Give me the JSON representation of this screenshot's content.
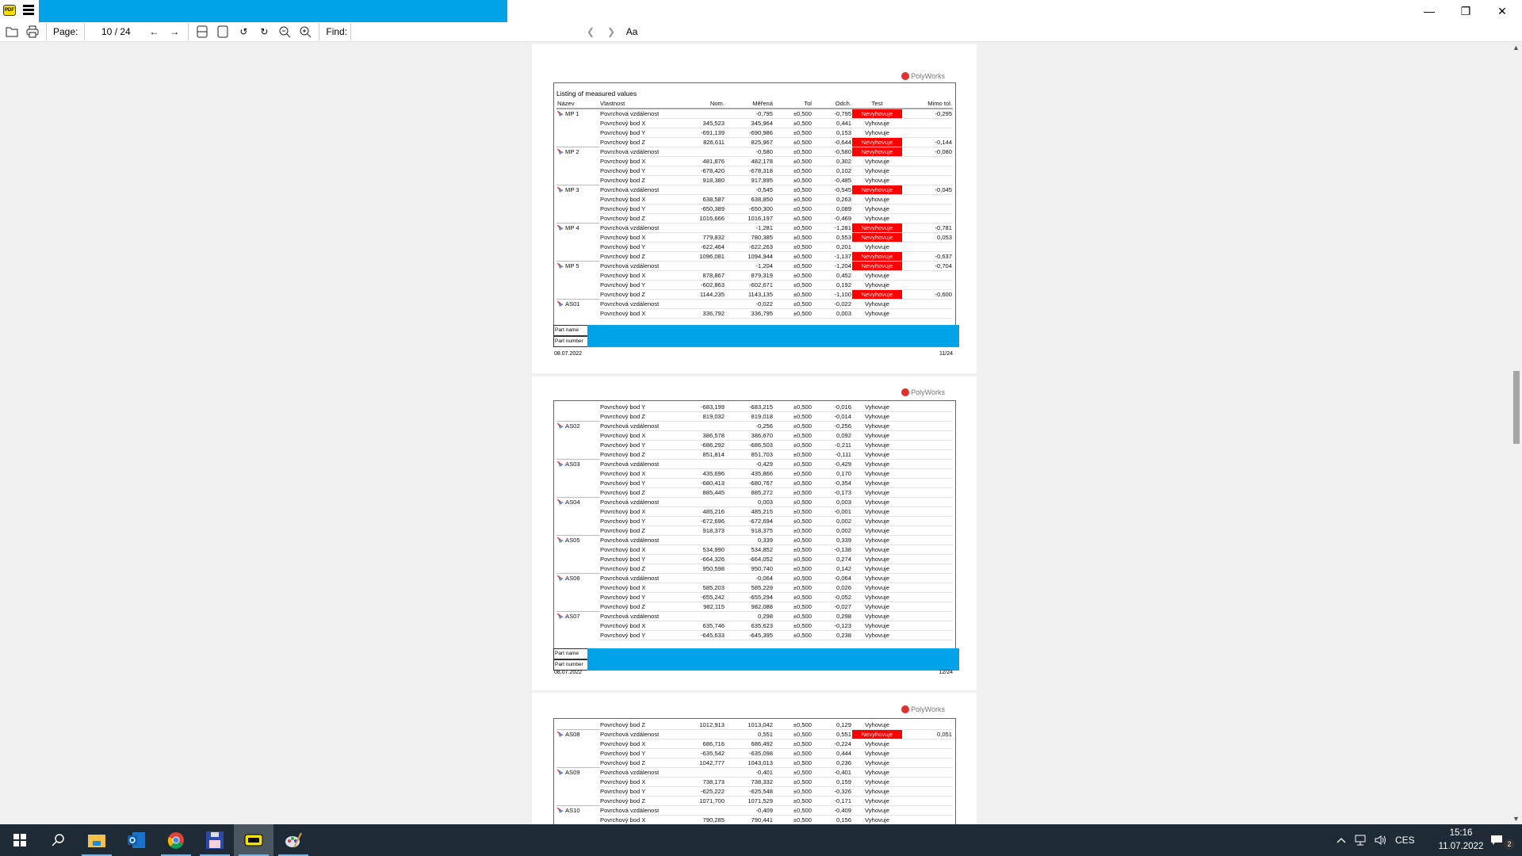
{
  "app": {
    "icon": "pdf-app-icon",
    "menu_icon": "hamburger-menu-icon",
    "title_redacted": true,
    "redaction_color": "#00a2e8"
  },
  "window_controls": {
    "minimize": "minimize-icon",
    "restore": "restore-icon",
    "close": "close-icon"
  },
  "toolbar": {
    "page_label": "Page:",
    "page_current": "10",
    "page_total": "/ 24",
    "find_label": "Find:",
    "find_value": "",
    "font_button": "Aa"
  },
  "colors": {
    "fail": "#ff0000",
    "accent": "#00a2e8",
    "taskbar": "#1e2a35"
  },
  "table_headers": [
    "Název",
    "Vlastnost",
    "Nom.",
    "Měřená",
    "Tol",
    "Odch.",
    "Test",
    "Mimo tol."
  ],
  "logo_text": "PolyWorks",
  "footer": {
    "part_name": "Part name",
    "part_number": "Part number"
  },
  "pages": [
    {
      "title": "Listing of measured values",
      "date": "08.07.2022",
      "page_no": "11/24",
      "groups": [
        {
          "name": "MP 1",
          "rows": [
            [
              "Povrchová vzdálenost",
              "",
              "-0,795",
              "±0,500",
              "-0,795",
              "Nevyhovuje",
              "-0,295"
            ],
            [
              "Povrchový bod X",
              "345,523",
              "345,964",
              "±0,500",
              "0,441",
              "Vyhovuje",
              ""
            ],
            [
              "Povrchový bod Y",
              "-691,139",
              "-690,986",
              "±0,500",
              "0,153",
              "Vyhovuje",
              ""
            ],
            [
              "Povrchový bod Z",
              "826,611",
              "825,967",
              "±0,500",
              "-0,644",
              "Nevyhovuje",
              "-0,144"
            ]
          ]
        },
        {
          "name": "MP 2",
          "rows": [
            [
              "Povrchová vzdálenost",
              "",
              "-0,580",
              "±0,500",
              "-0,580",
              "Nevyhovuje",
              "-0,080"
            ],
            [
              "Povrchový bod X",
              "481,876",
              "482,178",
              "±0,500",
              "0,302",
              "Vyhovuje",
              ""
            ],
            [
              "Povrchový bod Y",
              "-678,420",
              "-678,318",
              "±0,500",
              "0,102",
              "Vyhovuje",
              ""
            ],
            [
              "Povrchový bod Z",
              "918,380",
              "917,895",
              "±0,500",
              "-0,485",
              "Vyhovuje",
              ""
            ]
          ]
        },
        {
          "name": "MP 3",
          "rows": [
            [
              "Povrchová vzdálenost",
              "",
              "-0,545",
              "±0,500",
              "-0,545",
              "Nevyhovuje",
              "-0,045"
            ],
            [
              "Povrchový bod X",
              "638,587",
              "638,850",
              "±0,500",
              "0,263",
              "Vyhovuje",
              ""
            ],
            [
              "Povrchový bod Y",
              "-650,389",
              "-650,300",
              "±0,500",
              "0,089",
              "Vyhovuje",
              ""
            ],
            [
              "Povrchový bod Z",
              "1016,666",
              "1016,197",
              "±0,500",
              "-0,469",
              "Vyhovuje",
              ""
            ]
          ]
        },
        {
          "name": "MP 4",
          "rows": [
            [
              "Povrchová vzdálenost",
              "",
              "-1,281",
              "±0,500",
              "-1,281",
              "Nevyhovuje",
              "-0,781"
            ],
            [
              "Povrchový bod X",
              "779,832",
              "780,385",
              "±0,500",
              "0,553",
              "Nevyhovuje",
              "0,053"
            ],
            [
              "Povrchový bod Y",
              "-622,464",
              "-622,263",
              "±0,500",
              "0,201",
              "Vyhovuje",
              ""
            ],
            [
              "Povrchový bod Z",
              "1096,081",
              "1094,944",
              "±0,500",
              "-1,137",
              "Nevyhovuje",
              "-0,637"
            ]
          ]
        },
        {
          "name": "MP 5",
          "rows": [
            [
              "Povrchová vzdálenost",
              "",
              "-1,204",
              "±0,500",
              "-1,204",
              "Nevyhovuje",
              "-0,704"
            ],
            [
              "Povrchový bod X",
              "878,867",
              "879,319",
              "±0,500",
              "0,452",
              "Vyhovuje",
              ""
            ],
            [
              "Povrchový bod Y",
              "-602,863",
              "-602,671",
              "±0,500",
              "0,192",
              "Vyhovuje",
              ""
            ],
            [
              "Povrchový bod Z",
              "1144,235",
              "1143,135",
              "±0,500",
              "-1,100",
              "Nevyhovuje",
              "-0,600"
            ]
          ]
        },
        {
          "name": "AS01",
          "rows": [
            [
              "Povrchová vzdálenost",
              "",
              "-0,022",
              "±0,500",
              "-0,022",
              "Vyhovuje",
              ""
            ],
            [
              "Povrchový bod X",
              "336,792",
              "336,795",
              "±0,500",
              "0,003",
              "Vyhovuje",
              ""
            ]
          ]
        }
      ]
    },
    {
      "title": "",
      "date": "08.07.2022",
      "page_no": "12/24",
      "groups": [
        {
          "name": "",
          "rows": [
            [
              "Povrchový bod Y",
              "-683,199",
              "-683,215",
              "±0,500",
              "-0,016",
              "Vyhovuje",
              ""
            ],
            [
              "Povrchový bod Z",
              "819,032",
              "819,018",
              "±0,500",
              "-0,014",
              "Vyhovuje",
              ""
            ]
          ]
        },
        {
          "name": "AS02",
          "rows": [
            [
              "Povrchová vzdálenost",
              "",
              "-0,256",
              "±0,500",
              "-0,256",
              "Vyhovuje",
              ""
            ],
            [
              "Povrchový bod X",
              "386,578",
              "386,670",
              "±0,500",
              "0,092",
              "Vyhovuje",
              ""
            ],
            [
              "Povrchový bod Y",
              "-686,292",
              "-686,503",
              "±0,500",
              "-0,211",
              "Vyhovuje",
              ""
            ],
            [
              "Povrchový bod Z",
              "851,814",
              "851,703",
              "±0,500",
              "-0,111",
              "Vyhovuje",
              ""
            ]
          ]
        },
        {
          "name": "AS03",
          "rows": [
            [
              "Povrchová vzdálenost",
              "",
              "-0,429",
              "±0,500",
              "-0,429",
              "Vyhovuje",
              ""
            ],
            [
              "Povrchový bod X",
              "435,696",
              "435,866",
              "±0,500",
              "0,170",
              "Vyhovuje",
              ""
            ],
            [
              "Povrchový bod Y",
              "-680,413",
              "-680,767",
              "±0,500",
              "-0,354",
              "Vyhovuje",
              ""
            ],
            [
              "Povrchový bod Z",
              "885,445",
              "885,272",
              "±0,500",
              "-0,173",
              "Vyhovuje",
              ""
            ]
          ]
        },
        {
          "name": "AS04",
          "rows": [
            [
              "Povrchová vzdálenost",
              "",
              "0,003",
              "±0,500",
              "0,003",
              "Vyhovuje",
              ""
            ],
            [
              "Povrchový bod X",
              "485,216",
              "485,215",
              "±0,500",
              "-0,001",
              "Vyhovuje",
              ""
            ],
            [
              "Povrchový bod Y",
              "-672,696",
              "-672,694",
              "±0,500",
              "0,002",
              "Vyhovuje",
              ""
            ],
            [
              "Povrchový bod Z",
              "918,373",
              "918,375",
              "±0,500",
              "0,002",
              "Vyhovuje",
              ""
            ]
          ]
        },
        {
          "name": "AS05",
          "rows": [
            [
              "Povrchová vzdálenost",
              "",
              "0,339",
              "±0,500",
              "0,339",
              "Vyhovuje",
              ""
            ],
            [
              "Povrchový bod X",
              "534,990",
              "534,852",
              "±0,500",
              "-0,138",
              "Vyhovuje",
              ""
            ],
            [
              "Povrchový bod Y",
              "-664,326",
              "-664,052",
              "±0,500",
              "0,274",
              "Vyhovuje",
              ""
            ],
            [
              "Povrchový bod Z",
              "950,598",
              "950,740",
              "±0,500",
              "0,142",
              "Vyhovuje",
              ""
            ]
          ]
        },
        {
          "name": "AS06",
          "rows": [
            [
              "Povrchová vzdálenost",
              "",
              "-0,064",
              "±0,500",
              "-0,064",
              "Vyhovuje",
              ""
            ],
            [
              "Povrchový bod X",
              "585,203",
              "585,229",
              "±0,500",
              "0,026",
              "Vyhovuje",
              ""
            ],
            [
              "Povrchový bod Y",
              "-655,242",
              "-655,294",
              "±0,500",
              "-0,052",
              "Vyhovuje",
              ""
            ],
            [
              "Povrchový bod Z",
              "982,115",
              "982,088",
              "±0,500",
              "-0,027",
              "Vyhovuje",
              ""
            ]
          ]
        },
        {
          "name": "AS07",
          "rows": [
            [
              "Povrchová vzdálenost",
              "",
              "0,298",
              "±0,500",
              "0,298",
              "Vyhovuje",
              ""
            ],
            [
              "Povrchový bod X",
              "635,746",
              "635,623",
              "±0,500",
              "-0,123",
              "Vyhovuje",
              ""
            ],
            [
              "Povrchový bod Y",
              "-645,633",
              "-645,395",
              "±0,500",
              "0,238",
              "Vyhovuje",
              ""
            ]
          ]
        }
      ]
    },
    {
      "title": "",
      "groups": [
        {
          "name": "",
          "rows": [
            [
              "Povrchový bod Z",
              "1012,913",
              "1013,042",
              "±0,500",
              "0,129",
              "Vyhovuje",
              ""
            ]
          ]
        },
        {
          "name": "AS08",
          "rows": [
            [
              "Povrchová vzdálenost",
              "",
              "0,551",
              "±0,500",
              "0,551",
              "Nevyhovuje",
              "0,051"
            ],
            [
              "Povrchový bod X",
              "686,716",
              "686,492",
              "±0,500",
              "-0,224",
              "Vyhovuje",
              ""
            ],
            [
              "Povrchový bod Y",
              "-635,542",
              "-635,098",
              "±0,500",
              "0,444",
              "Vyhovuje",
              ""
            ],
            [
              "Povrchový bod Z",
              "1042,777",
              "1043,013",
              "±0,500",
              "0,236",
              "Vyhovuje",
              ""
            ]
          ]
        },
        {
          "name": "AS09",
          "rows": [
            [
              "Povrchová vzdálenost",
              "",
              "-0,401",
              "±0,500",
              "-0,401",
              "Vyhovuje",
              ""
            ],
            [
              "Povrchový bod X",
              "738,173",
              "738,332",
              "±0,500",
              "0,159",
              "Vyhovuje",
              ""
            ],
            [
              "Povrchový bod Y",
              "-625,222",
              "-625,548",
              "±0,500",
              "-0,326",
              "Vyhovuje",
              ""
            ],
            [
              "Povrchový bod Z",
              "1071,700",
              "1071,529",
              "±0,500",
              "-0,171",
              "Vyhovuje",
              ""
            ]
          ]
        },
        {
          "name": "AS10",
          "rows": [
            [
              "Povrchová vzdálenost",
              "",
              "-0,409",
              "±0,500",
              "-0,409",
              "Vyhovuje",
              ""
            ],
            [
              "Povrchový bod X",
              "790,285",
              "790,441",
              "±0,500",
              "0,156",
              "Vyhovuje",
              ""
            ]
          ]
        }
      ]
    }
  ],
  "taskbar": {
    "items": [
      "windows-start-icon",
      "search-icon",
      "file-explorer-icon",
      "outlook-icon",
      "chrome-icon",
      "save-disk-app-icon",
      "pdf-viewer-icon",
      "paint-app-icon"
    ],
    "tray": {
      "language": "CES",
      "time": "15:16",
      "date": "11.07.2022",
      "notifications": "2"
    }
  }
}
